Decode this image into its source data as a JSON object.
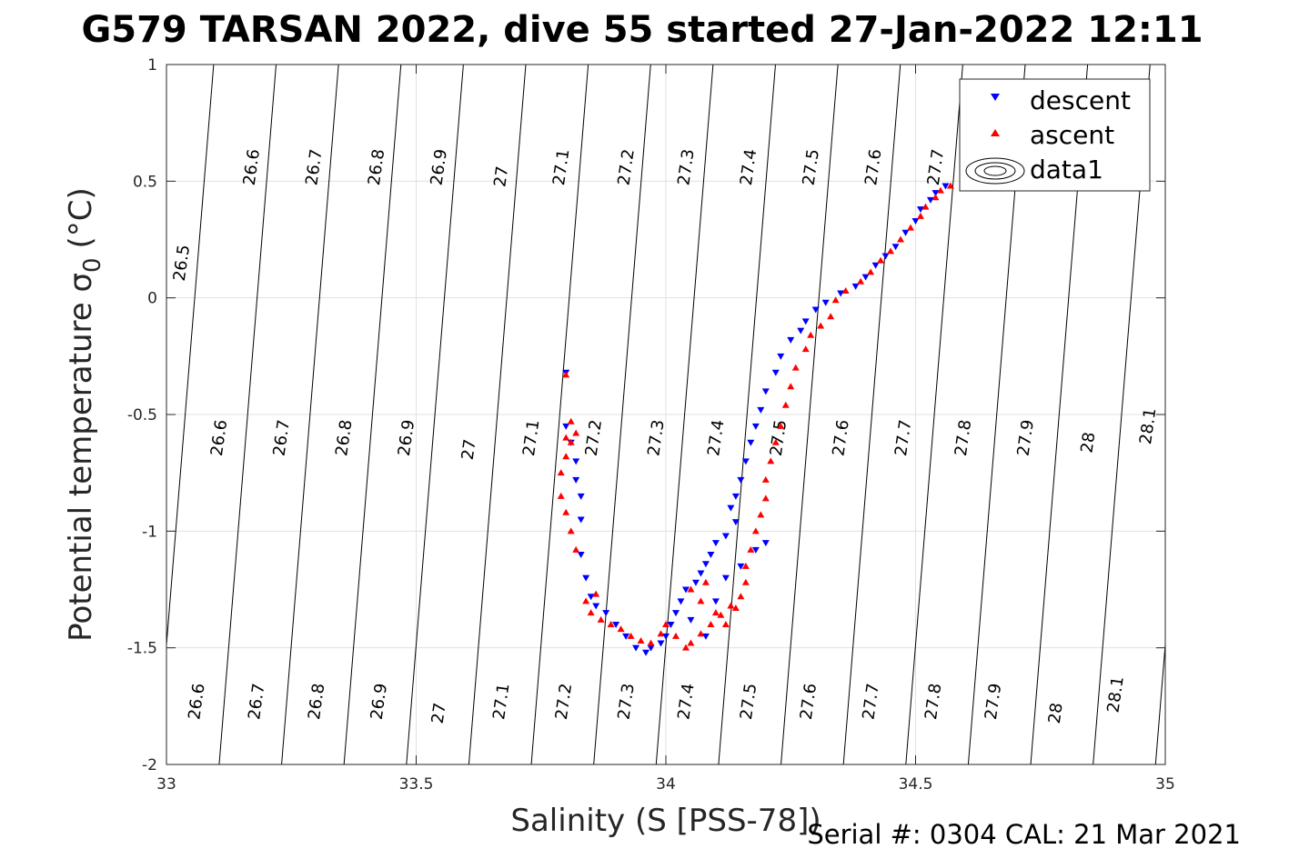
{
  "chart_data": {
    "type": "scatter",
    "title": "G579 TARSAN 2022, dive 55 started 27-Jan-2022 12:11",
    "xlabel": "Salinity (S [PSS-78])",
    "ylabel": "Potential temperature σ",
    "ylabel_sub": "0",
    "ylabel_unit": "(°C)",
    "xlim": [
      33,
      35
    ],
    "ylim": [
      -2,
      1
    ],
    "xticks": [
      "33",
      "33.5",
      "34",
      "34.5",
      "35"
    ],
    "xtick_values": [
      33,
      33.5,
      34,
      34.5,
      35
    ],
    "yticks": [
      "1",
      "0.5",
      "0",
      "-0.5",
      "-1",
      "-1.5",
      "-2"
    ],
    "ytick_values": [
      1,
      0.5,
      0,
      -0.5,
      -1,
      -1.5,
      -2
    ],
    "grid": true,
    "legend_position": "top-right",
    "legend": [
      {
        "label": "descent",
        "marker": "triangle-down",
        "color": "#0000ff"
      },
      {
        "label": "ascent",
        "marker": "triangle-up",
        "color": "#ff0000"
      },
      {
        "label": "data1",
        "marker": "contour",
        "color": "#000000"
      }
    ],
    "density_contours": {
      "levels": [
        "26.5",
        "26.6",
        "26.7",
        "26.8",
        "26.9",
        "27",
        "27.1",
        "27.2",
        "27.3",
        "27.4",
        "27.5",
        "27.6",
        "27.7",
        "27.8",
        "27.9",
        "28",
        "28.1"
      ],
      "labels_top": [
        {
          "text": "26.5",
          "s": 33.03,
          "t": 0.15
        },
        {
          "text": "26.6",
          "s": 33.17,
          "t": 0.56
        },
        {
          "text": "26.7",
          "s": 33.295,
          "t": 0.56
        },
        {
          "text": "26.8",
          "s": 33.42,
          "t": 0.56
        },
        {
          "text": "26.9",
          "s": 33.545,
          "t": 0.56
        },
        {
          "text": "27",
          "s": 33.67,
          "t": 0.52
        },
        {
          "text": "27.1",
          "s": 33.79,
          "t": 0.56
        },
        {
          "text": "27.2",
          "s": 33.92,
          "t": 0.56
        },
        {
          "text": "27.3",
          "s": 34.04,
          "t": 0.56
        },
        {
          "text": "27.4",
          "s": 34.165,
          "t": 0.56
        },
        {
          "text": "27.5",
          "s": 34.29,
          "t": 0.56
        },
        {
          "text": "27.6",
          "s": 34.415,
          "t": 0.56
        },
        {
          "text": "27.7",
          "s": 34.54,
          "t": 0.56
        }
      ],
      "labels_mid": [
        {
          "text": "26.6",
          "s": 33.105,
          "t": -0.6
        },
        {
          "text": "26.7",
          "s": 33.23,
          "t": -0.6
        },
        {
          "text": "26.8",
          "s": 33.355,
          "t": -0.6
        },
        {
          "text": "26.9",
          "s": 33.48,
          "t": -0.6
        },
        {
          "text": "27",
          "s": 33.605,
          "t": -0.65
        },
        {
          "text": "27.1",
          "s": 33.73,
          "t": -0.6
        },
        {
          "text": "27.2",
          "s": 33.855,
          "t": -0.6
        },
        {
          "text": "27.3",
          "s": 33.98,
          "t": -0.6
        },
        {
          "text": "27.4",
          "s": 34.1,
          "t": -0.6
        },
        {
          "text": "27.5",
          "s": 34.225,
          "t": -0.6
        },
        {
          "text": "27.6",
          "s": 34.35,
          "t": -0.6
        },
        {
          "text": "27.7",
          "s": 34.475,
          "t": -0.6
        },
        {
          "text": "27.8",
          "s": 34.595,
          "t": -0.6
        },
        {
          "text": "27.9",
          "s": 34.72,
          "t": -0.6
        },
        {
          "text": "28",
          "s": 34.845,
          "t": -0.62
        },
        {
          "text": "28.1",
          "s": 34.965,
          "t": -0.55
        }
      ],
      "labels_bottom": [
        {
          "text": "26.6",
          "s": 33.06,
          "t": -1.73
        },
        {
          "text": "26.7",
          "s": 33.18,
          "t": -1.73
        },
        {
          "text": "26.8",
          "s": 33.3,
          "t": -1.73
        },
        {
          "text": "26.9",
          "s": 33.425,
          "t": -1.73
        },
        {
          "text": "27",
          "s": 33.545,
          "t": -1.78
        },
        {
          "text": "27.1",
          "s": 33.67,
          "t": -1.73
        },
        {
          "text": "27.2",
          "s": 33.795,
          "t": -1.73
        },
        {
          "text": "27.3",
          "s": 33.92,
          "t": -1.73
        },
        {
          "text": "27.4",
          "s": 34.04,
          "t": -1.73
        },
        {
          "text": "27.5",
          "s": 34.165,
          "t": -1.73
        },
        {
          "text": "27.6",
          "s": 34.285,
          "t": -1.73
        },
        {
          "text": "27.7",
          "s": 34.41,
          "t": -1.73
        },
        {
          "text": "27.8",
          "s": 34.535,
          "t": -1.73
        },
        {
          "text": "27.9",
          "s": 34.655,
          "t": -1.73
        },
        {
          "text": "28",
          "s": 34.78,
          "t": -1.78
        },
        {
          "text": "28.1",
          "s": 34.9,
          "t": -1.7
        }
      ]
    },
    "series": [
      {
        "name": "descent",
        "marker": "triangle-down",
        "color": "#0000ff",
        "points": [
          [
            34.56,
            0.48
          ],
          [
            34.54,
            0.45
          ],
          [
            34.53,
            0.42
          ],
          [
            34.51,
            0.38
          ],
          [
            34.5,
            0.33
          ],
          [
            34.48,
            0.28
          ],
          [
            34.46,
            0.22
          ],
          [
            34.44,
            0.18
          ],
          [
            34.42,
            0.14
          ],
          [
            34.4,
            0.09
          ],
          [
            34.38,
            0.05
          ],
          [
            34.35,
            0.02
          ],
          [
            34.32,
            -0.02
          ],
          [
            34.3,
            -0.05
          ],
          [
            34.28,
            -0.1
          ],
          [
            34.27,
            -0.14
          ],
          [
            34.25,
            -0.18
          ],
          [
            34.23,
            -0.25
          ],
          [
            34.22,
            -0.32
          ],
          [
            34.2,
            -0.4
          ],
          [
            34.19,
            -0.48
          ],
          [
            34.18,
            -0.55
          ],
          [
            34.17,
            -0.62
          ],
          [
            34.16,
            -0.7
          ],
          [
            34.15,
            -0.78
          ],
          [
            34.14,
            -0.85
          ],
          [
            34.13,
            -0.9
          ],
          [
            34.14,
            -0.96
          ],
          [
            34.12,
            -1.02
          ],
          [
            34.1,
            -1.05
          ],
          [
            34.09,
            -1.1
          ],
          [
            34.08,
            -1.14
          ],
          [
            34.07,
            -1.18
          ],
          [
            34.06,
            -1.22
          ],
          [
            34.04,
            -1.25
          ],
          [
            34.03,
            -1.3
          ],
          [
            34.02,
            -1.35
          ],
          [
            34.01,
            -1.4
          ],
          [
            34.0,
            -1.45
          ],
          [
            33.99,
            -1.48
          ],
          [
            33.97,
            -1.5
          ],
          [
            33.96,
            -1.52
          ],
          [
            33.94,
            -1.5
          ],
          [
            33.92,
            -1.45
          ],
          [
            33.9,
            -1.4
          ],
          [
            33.88,
            -1.35
          ],
          [
            33.86,
            -1.32
          ],
          [
            33.85,
            -1.28
          ],
          [
            33.84,
            -1.2
          ],
          [
            33.83,
            -1.1
          ],
          [
            33.83,
            -0.95
          ],
          [
            33.83,
            -0.85
          ],
          [
            33.82,
            -0.78
          ],
          [
            33.82,
            -0.7
          ],
          [
            33.81,
            -0.62
          ],
          [
            33.8,
            -0.55
          ],
          [
            33.8,
            -0.32
          ],
          [
            34.05,
            -1.38
          ],
          [
            34.08,
            -1.45
          ],
          [
            34.1,
            -1.3
          ],
          [
            34.12,
            -1.2
          ],
          [
            34.15,
            -1.15
          ],
          [
            34.18,
            -1.08
          ],
          [
            34.2,
            -1.05
          ]
        ]
      },
      {
        "name": "ascent",
        "marker": "triangle-up",
        "color": "#ff0000",
        "points": [
          [
            34.57,
            0.48
          ],
          [
            34.55,
            0.46
          ],
          [
            34.54,
            0.43
          ],
          [
            34.52,
            0.39
          ],
          [
            34.51,
            0.35
          ],
          [
            34.49,
            0.3
          ],
          [
            34.47,
            0.25
          ],
          [
            34.45,
            0.2
          ],
          [
            34.43,
            0.16
          ],
          [
            34.41,
            0.11
          ],
          [
            34.39,
            0.07
          ],
          [
            34.36,
            0.03
          ],
          [
            34.34,
            -0.01
          ],
          [
            34.33,
            -0.08
          ],
          [
            34.31,
            -0.12
          ],
          [
            34.29,
            -0.16
          ],
          [
            34.28,
            -0.22
          ],
          [
            34.26,
            -0.3
          ],
          [
            34.25,
            -0.38
          ],
          [
            34.24,
            -0.46
          ],
          [
            34.23,
            -0.55
          ],
          [
            34.22,
            -0.62
          ],
          [
            34.21,
            -0.7
          ],
          [
            34.2,
            -0.78
          ],
          [
            34.2,
            -0.86
          ],
          [
            34.19,
            -0.93
          ],
          [
            34.18,
            -1.0
          ],
          [
            34.17,
            -1.08
          ],
          [
            34.16,
            -1.15
          ],
          [
            34.16,
            -1.22
          ],
          [
            34.15,
            -1.28
          ],
          [
            34.13,
            -1.32
          ],
          [
            34.11,
            -1.36
          ],
          [
            34.09,
            -1.4
          ],
          [
            34.07,
            -1.44
          ],
          [
            34.05,
            -1.48
          ],
          [
            34.04,
            -1.5
          ],
          [
            34.02,
            -1.45
          ],
          [
            34.0,
            -1.4
          ],
          [
            33.99,
            -1.44
          ],
          [
            33.97,
            -1.48
          ],
          [
            33.95,
            -1.47
          ],
          [
            33.93,
            -1.45
          ],
          [
            33.91,
            -1.42
          ],
          [
            33.89,
            -1.4
          ],
          [
            33.87,
            -1.38
          ],
          [
            33.85,
            -1.35
          ],
          [
            33.84,
            -1.3
          ],
          [
            33.86,
            -1.27
          ],
          [
            33.82,
            -1.08
          ],
          [
            33.81,
            -1.0
          ],
          [
            33.8,
            -0.92
          ],
          [
            33.79,
            -0.85
          ],
          [
            33.79,
            -0.75
          ],
          [
            33.8,
            -0.68
          ],
          [
            33.81,
            -0.62
          ],
          [
            33.82,
            -0.58
          ],
          [
            33.81,
            -0.53
          ],
          [
            33.8,
            -0.6
          ],
          [
            34.05,
            -1.25
          ],
          [
            34.07,
            -1.3
          ],
          [
            34.08,
            -1.22
          ],
          [
            34.1,
            -1.35
          ],
          [
            34.12,
            -1.4
          ],
          [
            34.14,
            -1.33
          ],
          [
            33.8,
            -0.33
          ]
        ]
      }
    ]
  },
  "footer": {
    "serial_text": "Serial #: 0304  CAL: 21 Mar 2021"
  }
}
